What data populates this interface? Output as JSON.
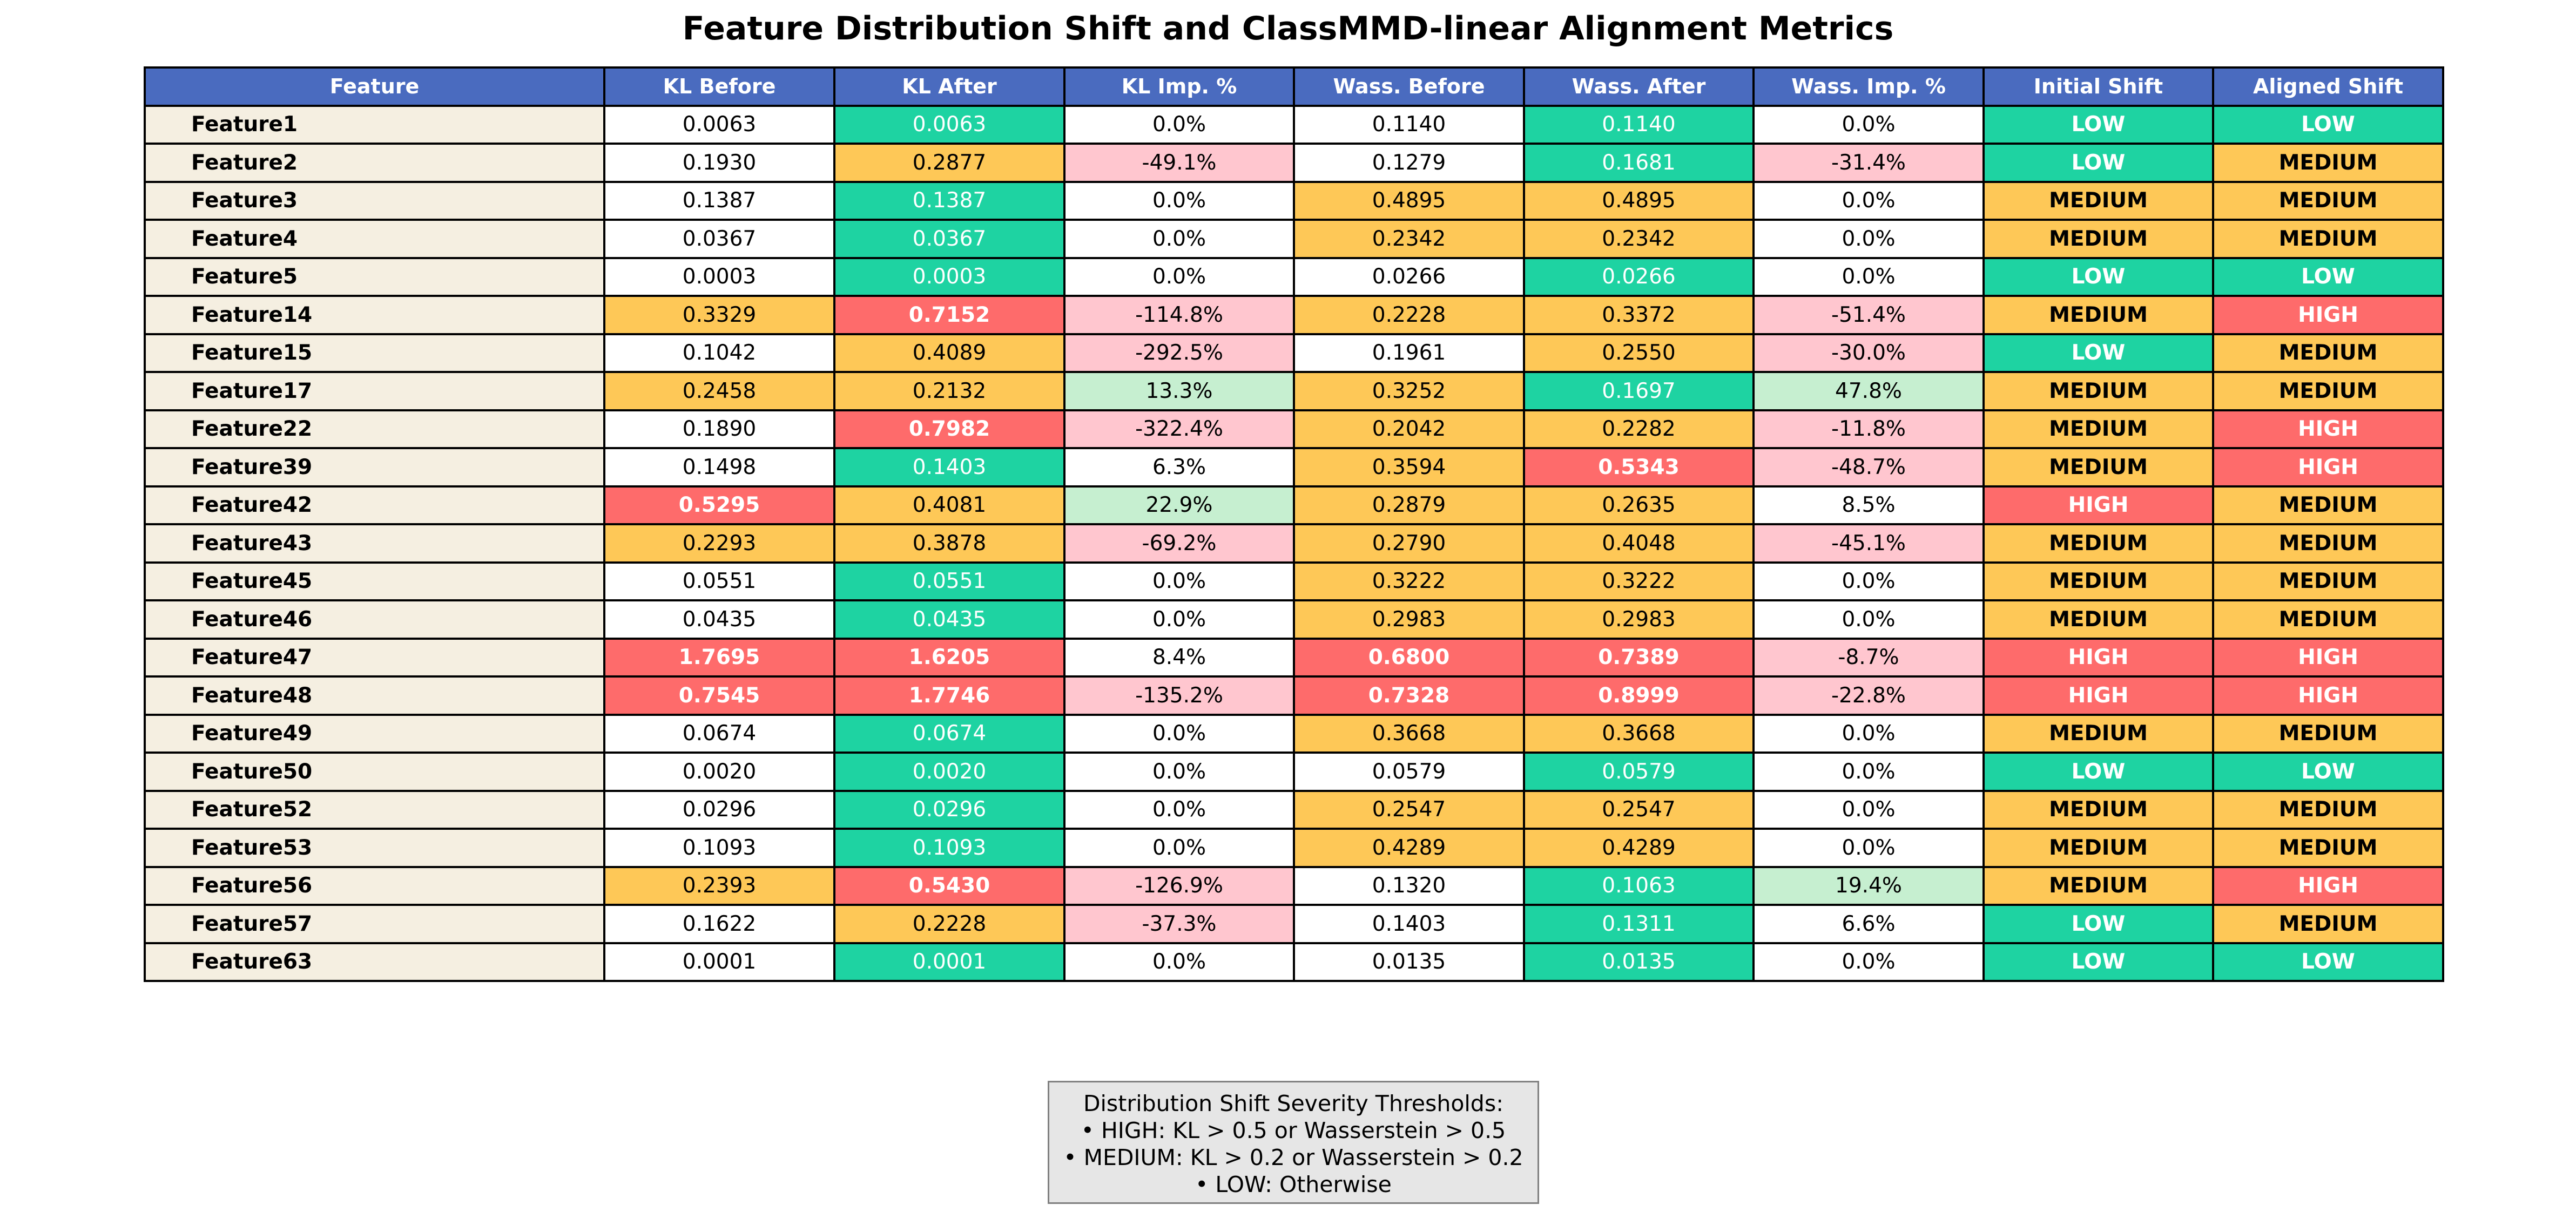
{
  "title": "Feature Distribution Shift and ClassMMD-linear Alignment Metrics",
  "colors": {
    "header": "#4a6bbf",
    "feature_cell": "#f5efe1",
    "low": "#1ed3a2",
    "medium": "#fec857",
    "high": "#fe6b6b",
    "worse": "#ffc6cf",
    "better": "#c6efd0",
    "neutral": "#ffffff"
  },
  "chart_data": {
    "type": "table",
    "columns": [
      "Feature",
      "KL Before",
      "KL After",
      "KL Imp. %",
      "Wass. Before",
      "Wass. After",
      "Wass. Imp. %",
      "Initial Shift",
      "Aligned Shift"
    ],
    "rows": [
      [
        "Feature1",
        "0.0063",
        "0.0063",
        "0.0%",
        "0.1140",
        "0.1140",
        "0.0%",
        "LOW",
        "LOW"
      ],
      [
        "Feature2",
        "0.1930",
        "0.2877",
        "-49.1%",
        "0.1279",
        "0.1681",
        "-31.4%",
        "LOW",
        "MEDIUM"
      ],
      [
        "Feature3",
        "0.1387",
        "0.1387",
        "0.0%",
        "0.4895",
        "0.4895",
        "0.0%",
        "MEDIUM",
        "MEDIUM"
      ],
      [
        "Feature4",
        "0.0367",
        "0.0367",
        "0.0%",
        "0.2342",
        "0.2342",
        "0.0%",
        "MEDIUM",
        "MEDIUM"
      ],
      [
        "Feature5",
        "0.0003",
        "0.0003",
        "0.0%",
        "0.0266",
        "0.0266",
        "0.0%",
        "LOW",
        "LOW"
      ],
      [
        "Feature14",
        "0.3329",
        "0.7152",
        "-114.8%",
        "0.2228",
        "0.3372",
        "-51.4%",
        "MEDIUM",
        "HIGH"
      ],
      [
        "Feature15",
        "0.1042",
        "0.4089",
        "-292.5%",
        "0.1961",
        "0.2550",
        "-30.0%",
        "LOW",
        "MEDIUM"
      ],
      [
        "Feature17",
        "0.2458",
        "0.2132",
        "13.3%",
        "0.3252",
        "0.1697",
        "47.8%",
        "MEDIUM",
        "MEDIUM"
      ],
      [
        "Feature22",
        "0.1890",
        "0.7982",
        "-322.4%",
        "0.2042",
        "0.2282",
        "-11.8%",
        "MEDIUM",
        "HIGH"
      ],
      [
        "Feature39",
        "0.1498",
        "0.1403",
        "6.3%",
        "0.3594",
        "0.5343",
        "-48.7%",
        "MEDIUM",
        "HIGH"
      ],
      [
        "Feature42",
        "0.5295",
        "0.4081",
        "22.9%",
        "0.2879",
        "0.2635",
        "8.5%",
        "HIGH",
        "MEDIUM"
      ],
      [
        "Feature43",
        "0.2293",
        "0.3878",
        "-69.2%",
        "0.2790",
        "0.4048",
        "-45.1%",
        "MEDIUM",
        "MEDIUM"
      ],
      [
        "Feature45",
        "0.0551",
        "0.0551",
        "0.0%",
        "0.3222",
        "0.3222",
        "0.0%",
        "MEDIUM",
        "MEDIUM"
      ],
      [
        "Feature46",
        "0.0435",
        "0.0435",
        "0.0%",
        "0.2983",
        "0.2983",
        "0.0%",
        "MEDIUM",
        "MEDIUM"
      ],
      [
        "Feature47",
        "1.7695",
        "1.6205",
        "8.4%",
        "0.6800",
        "0.7389",
        "-8.7%",
        "HIGH",
        "HIGH"
      ],
      [
        "Feature48",
        "0.7545",
        "1.7746",
        "-135.2%",
        "0.7328",
        "0.8999",
        "-22.8%",
        "HIGH",
        "HIGH"
      ],
      [
        "Feature49",
        "0.0674",
        "0.0674",
        "0.0%",
        "0.3668",
        "0.3668",
        "0.0%",
        "MEDIUM",
        "MEDIUM"
      ],
      [
        "Feature50",
        "0.0020",
        "0.0020",
        "0.0%",
        "0.0579",
        "0.0579",
        "0.0%",
        "LOW",
        "LOW"
      ],
      [
        "Feature52",
        "0.0296",
        "0.0296",
        "0.0%",
        "0.2547",
        "0.2547",
        "0.0%",
        "MEDIUM",
        "MEDIUM"
      ],
      [
        "Feature53",
        "0.1093",
        "0.1093",
        "0.0%",
        "0.4289",
        "0.4289",
        "0.0%",
        "MEDIUM",
        "MEDIUM"
      ],
      [
        "Feature56",
        "0.2393",
        "0.5430",
        "-126.9%",
        "0.1320",
        "0.1063",
        "19.4%",
        "MEDIUM",
        "HIGH"
      ],
      [
        "Feature57",
        "0.1622",
        "0.2228",
        "-37.3%",
        "0.1403",
        "0.1311",
        "6.6%",
        "LOW",
        "MEDIUM"
      ],
      [
        "Feature63",
        "0.0001",
        "0.0001",
        "0.0%",
        "0.0135",
        "0.0135",
        "0.0%",
        "LOW",
        "LOW"
      ]
    ]
  },
  "thresholds": {
    "title": "Distribution Shift Severity Thresholds:",
    "lines": [
      "• HIGH: KL > 0.5 or Wasserstein > 0.5",
      "• MEDIUM: KL > 0.2 or Wasserstein > 0.2",
      "• LOW: Otherwise"
    ]
  }
}
